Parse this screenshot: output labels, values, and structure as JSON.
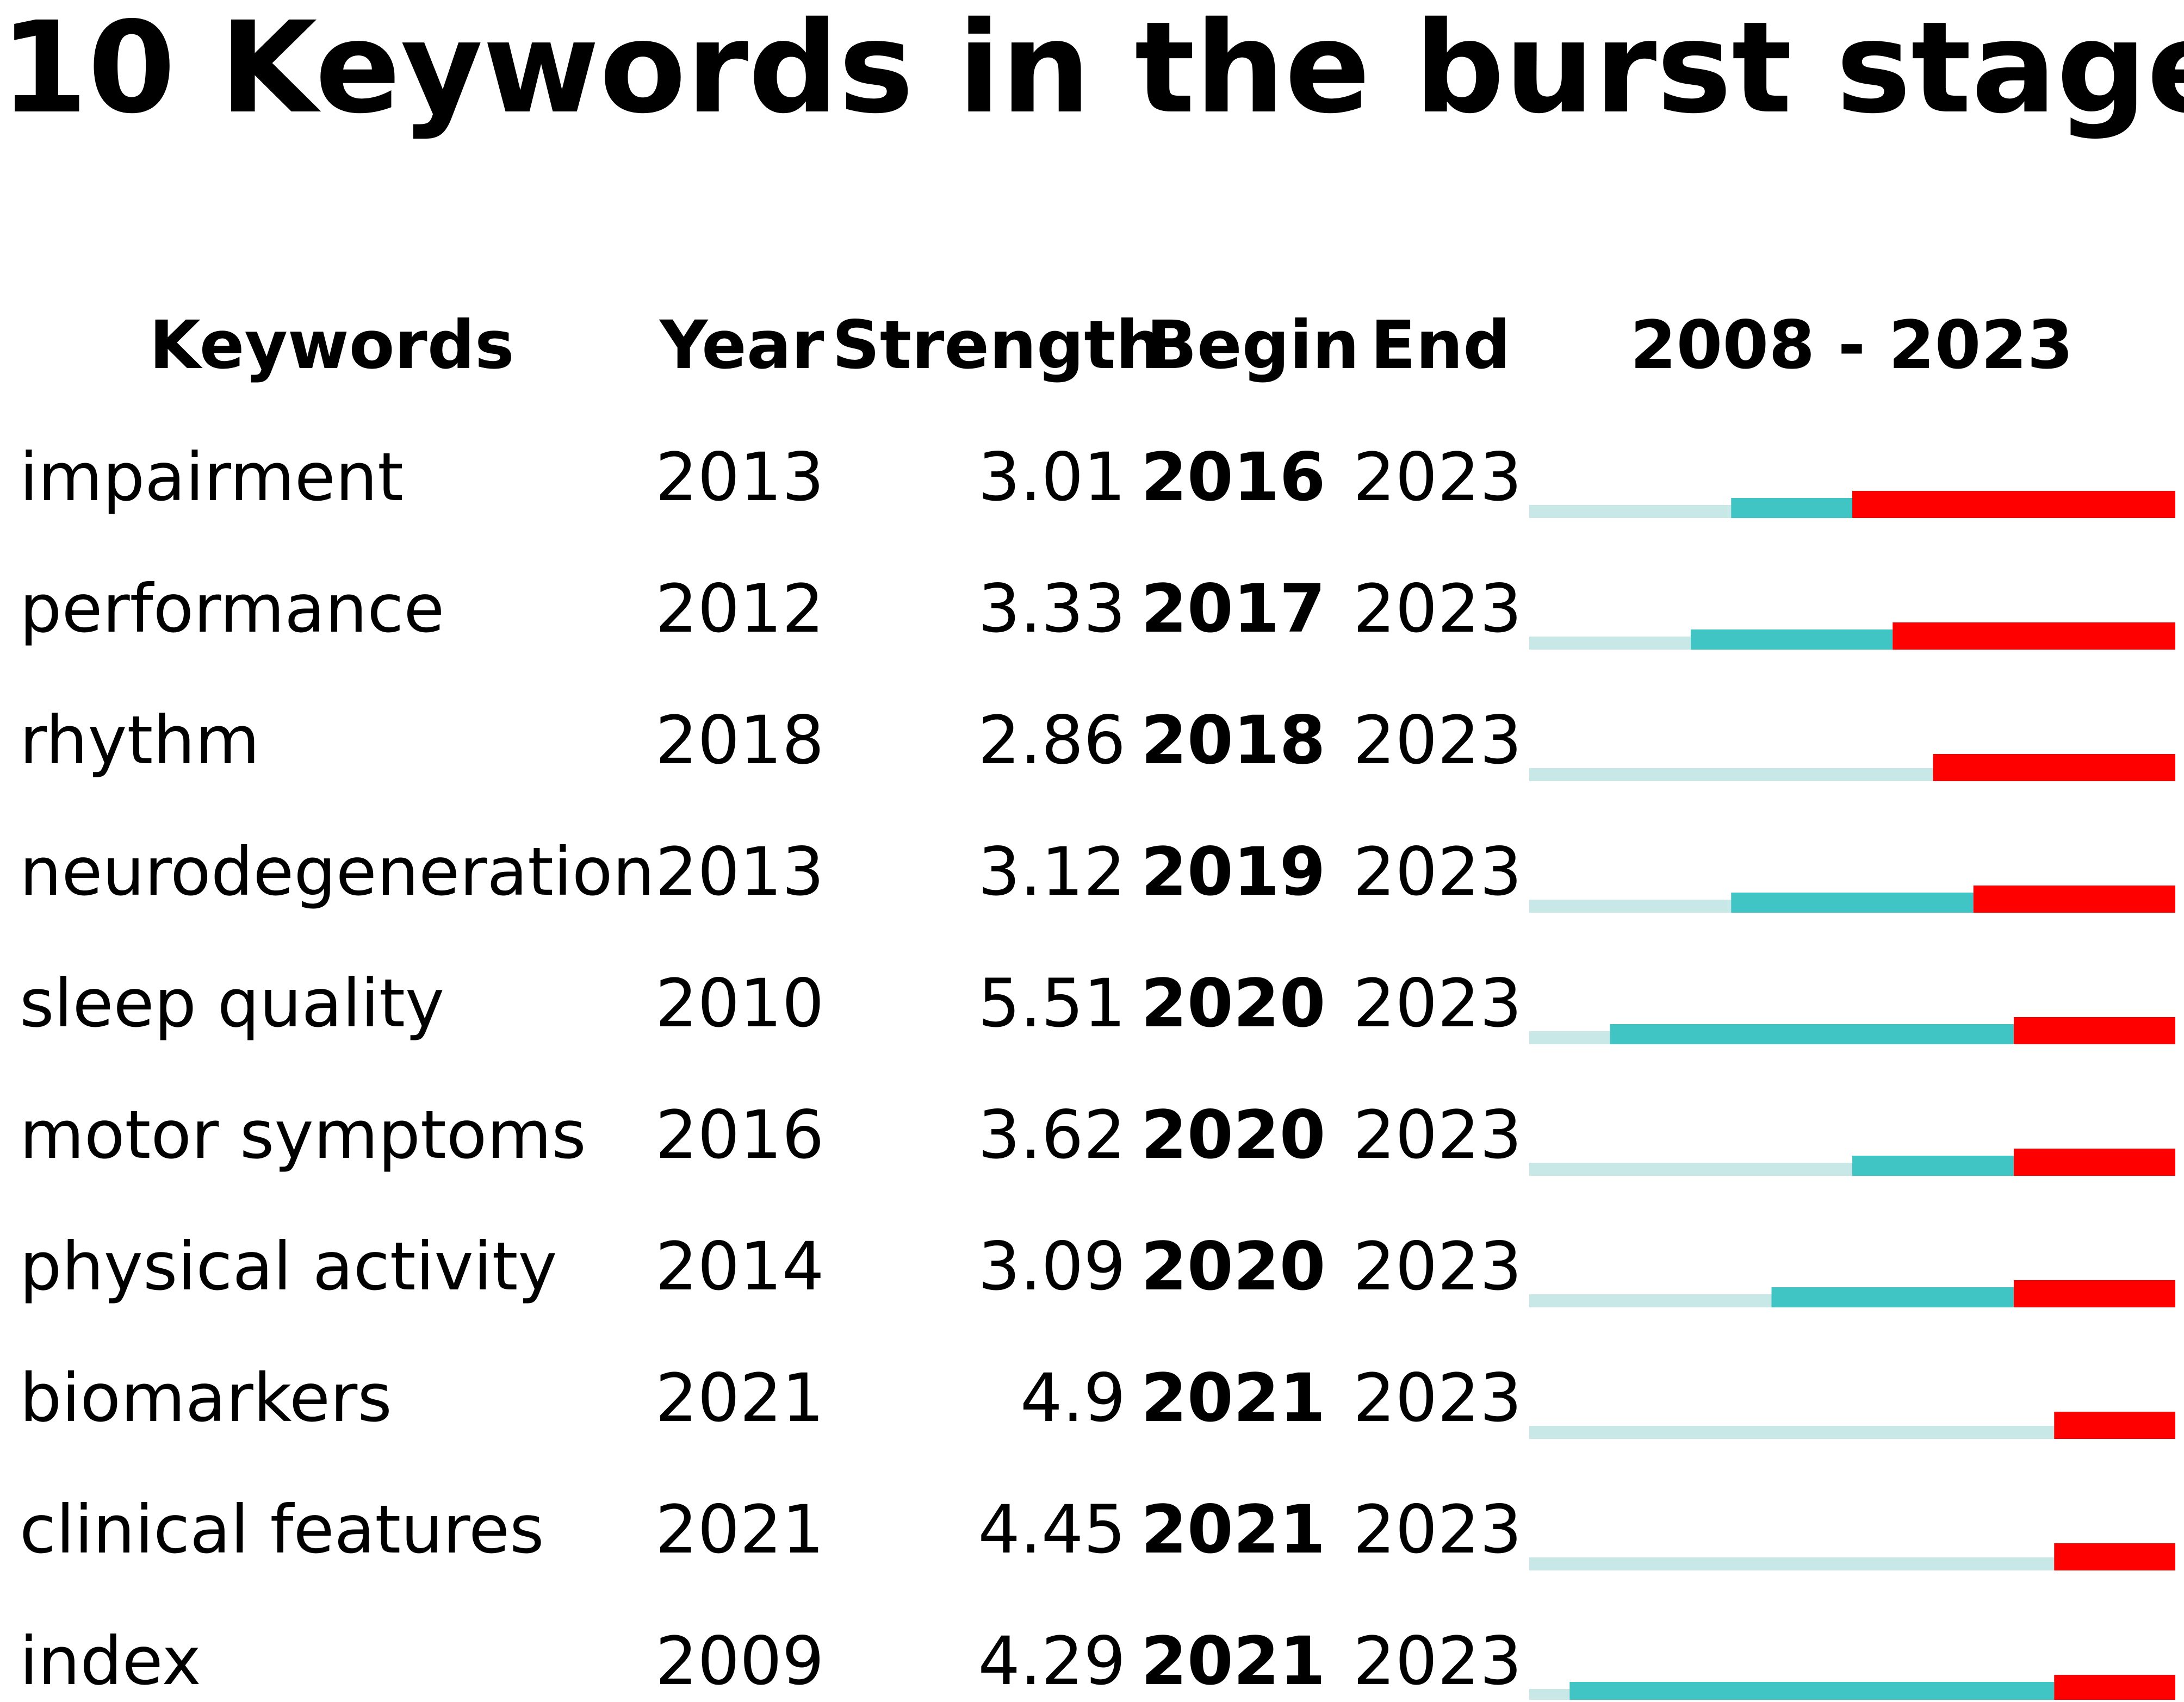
{
  "title": "10 Keywords in the burst stage",
  "chart_data": {
    "type": "table",
    "headers": {
      "keywords": "Keywords",
      "year": "Year",
      "strength": "Strength",
      "begin": "Begin",
      "end": "End",
      "range": "2008 - 2023"
    },
    "year_range": [
      2008,
      2023
    ],
    "colors": {
      "before_first_year": "#c8e8e8",
      "active_not_burst": "#40c4c4",
      "burst": "#ff0000"
    },
    "rows": [
      {
        "keyword": "impairment",
        "year": "2013",
        "strength": "3.01",
        "begin": "2016",
        "end": "2023"
      },
      {
        "keyword": "performance",
        "year": "2012",
        "strength": "3.33",
        "begin": "2017",
        "end": "2023"
      },
      {
        "keyword": "rhythm",
        "year": "2018",
        "strength": "2.86",
        "begin": "2018",
        "end": "2023"
      },
      {
        "keyword": "neurodegeneration",
        "year": "2013",
        "strength": "3.12",
        "begin": "2019",
        "end": "2023"
      },
      {
        "keyword": "sleep quality",
        "year": "2010",
        "strength": "5.51",
        "begin": "2020",
        "end": "2023"
      },
      {
        "keyword": "motor symptoms",
        "year": "2016",
        "strength": "3.62",
        "begin": "2020",
        "end": "2023"
      },
      {
        "keyword": "physical activity",
        "year": "2014",
        "strength": "3.09",
        "begin": "2020",
        "end": "2023"
      },
      {
        "keyword": "biomarkers",
        "year": "2021",
        "strength": "4.9",
        "begin": "2021",
        "end": "2023"
      },
      {
        "keyword": "clinical features",
        "year": "2021",
        "strength": "4.45",
        "begin": "2021",
        "end": "2023"
      },
      {
        "keyword": "index",
        "year": "2009",
        "strength": "4.29",
        "begin": "2021",
        "end": "2023"
      }
    ]
  }
}
